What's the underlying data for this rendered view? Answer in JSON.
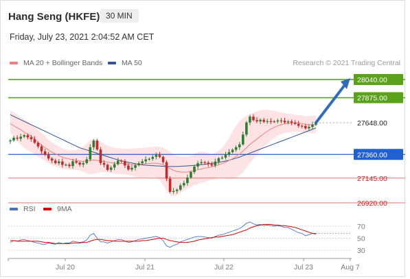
{
  "header": {
    "title": "Hang Seng (HKFE)",
    "interval": "30 MIN",
    "datetime": "Friday, July 23, 2021 2:04:52 AM CET",
    "credit": "Research © 2021 Trading Central"
  },
  "legend_main": [
    {
      "label": "MA 20 + Bollinger Bands",
      "color": "#f08080"
    },
    {
      "label": "MA 50",
      "color": "#2f5597"
    }
  ],
  "legend_rsi": [
    {
      "label": "RSI",
      "color": "#4472c4"
    },
    {
      "label": "9MA",
      "color": "#e00000"
    }
  ],
  "colors": {
    "resistance": "#5aa21a",
    "support_blue": "#2060d0",
    "support_red": "#e06060",
    "arrow": "#2f6cc0",
    "candle_up": "#2e7d32",
    "candle_down": "#c62828",
    "band_fill": "#fde0e0",
    "ma20": "#f08080",
    "ma50": "#2f5597"
  },
  "chart_data": {
    "type": "candlestick",
    "x_ticks": [
      "Jul 20",
      "Jul 21",
      "Jul 22",
      "Jul 23",
      "Aug 7"
    ],
    "levels": [
      {
        "value": 28040.0,
        "label": "28040.00",
        "kind": "resistance"
      },
      {
        "value": 27875.0,
        "label": "27875.00",
        "kind": "resistance"
      },
      {
        "value": 27648.0,
        "label": "27648.00",
        "kind": "last_price"
      },
      {
        "value": 27360.0,
        "label": "27360.00",
        "kind": "pivot"
      },
      {
        "value": 27145.0,
        "label": "27145.00",
        "kind": "support"
      },
      {
        "value": 26920.0,
        "label": "26920.00",
        "kind": "support"
      }
    ],
    "price_closes": [
      27487,
      27512,
      27503,
      27521,
      27534,
      27515,
      27498,
      27466,
      27432,
      27388,
      27357,
      27323,
      27304,
      27281,
      27296,
      27265,
      27267,
      27254,
      27298,
      27285,
      27268,
      27281,
      27315,
      27425,
      27485,
      27405,
      27282,
      27266,
      27220,
      27241,
      27271,
      27303,
      27299,
      27260,
      27223,
      27238,
      27262,
      27280,
      27297,
      27315,
      27320,
      27338,
      27355,
      27338,
      27290,
      27140,
      27020,
      27028,
      27040,
      27079,
      27100,
      27150,
      27200,
      27250,
      27280,
      27290,
      27285,
      27272,
      27260,
      27295,
      27325,
      27331,
      27362,
      27381,
      27402,
      27425,
      27451,
      27540,
      27650,
      27703,
      27671,
      27660,
      27674,
      27656,
      27662,
      27660,
      27659,
      27668,
      27666,
      27651,
      27660,
      27649,
      27638,
      27620,
      27619,
      27596,
      27610,
      27630,
      27648
    ],
    "ma20": [
      27640,
      27620,
      27600,
      27585,
      27560,
      27545,
      27525,
      27500,
      27470,
      27445,
      27420,
      27400,
      27380,
      27365,
      27350,
      27335,
      27325,
      27318,
      27312,
      27305,
      27300,
      27298,
      27300,
      27305,
      27310,
      27305,
      27300,
      27295,
      27290,
      27285,
      27280,
      27278,
      27278,
      27275,
      27272,
      27270,
      27270,
      27270,
      27272,
      27275,
      27278,
      27280,
      27280,
      27275,
      27265,
      27250,
      27230,
      27215,
      27205,
      27200,
      27198,
      27200,
      27205,
      27212,
      27220,
      27228,
      27235,
      27240,
      27248,
      27256,
      27265,
      27276,
      27290,
      27306,
      27322,
      27342,
      27362,
      27390,
      27420,
      27450,
      27475,
      27500,
      27525,
      27548,
      27570,
      27590,
      27605,
      27620,
      27630,
      27638,
      27643,
      27645,
      27647,
      27645,
      27641,
      27635,
      27630,
      27630,
      27632
    ],
    "bb_upper": [
      27760,
      27740,
      27720,
      27700,
      27680,
      27660,
      27640,
      27610,
      27580,
      27555,
      27525,
      27495,
      27470,
      27450,
      27430,
      27415,
      27405,
      27400,
      27398,
      27400,
      27410,
      27430,
      27460,
      27490,
      27505,
      27495,
      27475,
      27455,
      27440,
      27430,
      27420,
      27415,
      27412,
      27410,
      27410,
      27412,
      27415,
      27418,
      27420,
      27422,
      27425,
      27428,
      27430,
      27428,
      27420,
      27405,
      27385,
      27360,
      27345,
      27340,
      27338,
      27340,
      27350,
      27365,
      27380,
      27385,
      27380,
      27370,
      27362,
      27372,
      27395,
      27420,
      27460,
      27510,
      27570,
      27620,
      27660,
      27690,
      27710,
      27725,
      27740,
      27752,
      27760,
      27765,
      27765,
      27760,
      27755,
      27748,
      27740,
      27735,
      27730,
      27725,
      27720,
      27717,
      27713,
      27708,
      27708,
      27710,
      27714
    ],
    "bb_lower": [
      27560,
      27520,
      27480,
      27450,
      27420,
      27400,
      27380,
      27360,
      27340,
      27320,
      27300,
      27280,
      27262,
      27250,
      27240,
      27230,
      27225,
      27222,
      27220,
      27218,
      27215,
      27205,
      27190,
      27180,
      27185,
      27190,
      27200,
      27200,
      27195,
      27190,
      27185,
      27182,
      27180,
      27178,
      27172,
      27165,
      27158,
      27152,
      27150,
      27150,
      27152,
      27155,
      27155,
      27130,
      27080,
      27030,
      26990,
      26980,
      26990,
      27010,
      27030,
      27050,
      27065,
      27080,
      27090,
      27100,
      27110,
      27120,
      27130,
      27140,
      27150,
      27150,
      27145,
      27140,
      27140,
      27150,
      27170,
      27200,
      27240,
      27280,
      27320,
      27360,
      27400,
      27430,
      27460,
      27490,
      27510,
      27530,
      27545,
      27555,
      27560,
      27563,
      27565,
      27565,
      27563,
      27560,
      27555,
      27552,
      27552
    ],
    "ma50": [
      27720,
      27705,
      27690,
      27675,
      27660,
      27645,
      27630,
      27615,
      27600,
      27585,
      27570,
      27555,
      27540,
      27525,
      27510,
      27495,
      27480,
      27465,
      27450,
      27435,
      27420,
      27410,
      27400,
      27390,
      27380,
      27370,
      27360,
      27350,
      27340,
      27330,
      27320,
      27310,
      27302,
      27295,
      27288,
      27282,
      27276,
      27270,
      27265,
      27262,
      27260,
      27258,
      27256,
      27254,
      27252,
      27250,
      27250,
      27250,
      27251,
      27252,
      27254,
      27256,
      27258,
      27260,
      27263,
      27266,
      27270,
      27274,
      27278,
      27283,
      27288,
      27294,
      27300,
      27308,
      27316,
      27326,
      27336,
      27348,
      27360,
      27372,
      27384,
      27396,
      27408,
      27420,
      27432,
      27444,
      27456,
      27468,
      27480,
      27492,
      27504,
      27516,
      27528,
      27540,
      27552,
      27564,
      27576,
      27588,
      27600
    ],
    "rsi_visible_ticks": [
      70,
      50,
      30
    ],
    "rsi": [
      43,
      46,
      45,
      47,
      48,
      46,
      45,
      43,
      42,
      40,
      40,
      42,
      41,
      40,
      43,
      41,
      42,
      42,
      45,
      44,
      43,
      44,
      47,
      55,
      58,
      50,
      44,
      44,
      42,
      44,
      46,
      48,
      48,
      45,
      43,
      44,
      46,
      48,
      49,
      50,
      51,
      52,
      53,
      51,
      46,
      37,
      35,
      38,
      40,
      44,
      46,
      48,
      50,
      52,
      53,
      53,
      52,
      51,
      50,
      53,
      55,
      56,
      58,
      60,
      62,
      64,
      66,
      70,
      75,
      77,
      74,
      72,
      73,
      71,
      72,
      71,
      70,
      71,
      70,
      68,
      68,
      65,
      62,
      59,
      58,
      54,
      56,
      58,
      58
    ],
    "rsi_9ma": [
      46,
      46,
      45,
      45,
      45,
      45,
      45,
      45,
      45,
      44,
      43,
      43,
      42,
      41,
      41,
      41,
      41,
      41,
      42,
      42,
      42,
      43,
      43,
      45,
      47,
      48,
      48,
      47,
      46,
      46,
      45,
      45,
      45,
      45,
      45,
      45,
      45,
      45,
      46,
      46,
      47,
      48,
      49,
      50,
      50,
      48,
      46,
      45,
      44,
      43,
      43,
      43,
      44,
      45,
      47,
      48,
      49,
      50,
      51,
      52,
      52,
      53,
      54,
      55,
      56,
      58,
      60,
      62,
      64,
      67,
      69,
      71,
      72,
      73,
      73,
      73,
      72,
      72,
      71,
      71,
      70,
      69,
      68,
      66,
      64,
      62,
      60,
      58,
      57
    ]
  }
}
